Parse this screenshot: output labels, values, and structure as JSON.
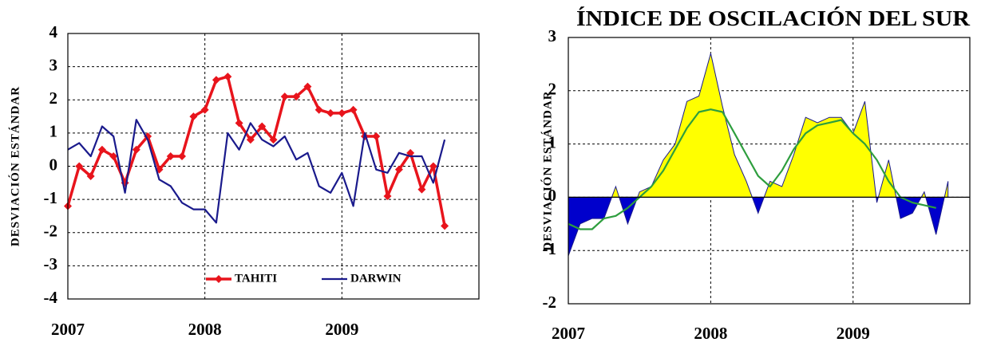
{
  "chart_data": [
    {
      "type": "line",
      "ylabel": "DESVIACIÓN  ESTÁNDAR",
      "x": [
        2007,
        2007.083,
        2007.167,
        2007.25,
        2007.333,
        2007.417,
        2007.5,
        2007.583,
        2007.667,
        2007.75,
        2007.833,
        2007.917,
        2008,
        2008.083,
        2008.167,
        2008.25,
        2008.333,
        2008.417,
        2008.5,
        2008.583,
        2008.667,
        2008.75,
        2008.833,
        2008.917,
        2009,
        2009.083,
        2009.167,
        2009.25,
        2009.333,
        2009.417,
        2009.5,
        2009.583,
        2009.667,
        2009.75
      ],
      "xlim": [
        2007,
        2010
      ],
      "xticks": [
        2007,
        2008,
        2009
      ],
      "ylim": [
        -4,
        4
      ],
      "yticks": [
        -4,
        -3,
        -2,
        -1,
        0,
        1,
        2,
        3,
        4
      ],
      "grid": true,
      "legend": "bottom",
      "series": [
        {
          "name": "TAHITI",
          "color": "#e8141c",
          "marker": "diamond",
          "values": [
            -1.2,
            0,
            -0.3,
            0.5,
            0.3,
            -0.5,
            0.5,
            0.9,
            -0.1,
            0.3,
            0.3,
            1.5,
            1.7,
            2.6,
            2.7,
            1.3,
            0.8,
            1.2,
            0.8,
            2.1,
            2.1,
            2.4,
            1.7,
            1.6,
            1.6,
            1.7,
            0.9,
            0.9,
            -0.9,
            -0.1,
            0.4,
            -0.7,
            0,
            -1.8
          ]
        },
        {
          "name": "DARWIN",
          "color": "#1a1a8c",
          "values": [
            0.5,
            0.7,
            0.3,
            1.2,
            0.9,
            -0.8,
            1.4,
            0.8,
            -0.4,
            -0.6,
            -1.1,
            -1.3,
            -1.3,
            -1.7,
            1.0,
            0.5,
            1.3,
            0.8,
            0.6,
            0.9,
            0.2,
            0.4,
            -0.6,
            -0.8,
            -0.2,
            -1.2,
            1.0,
            -0.1,
            -0.2,
            0.4,
            0.3,
            0.3,
            -0.5,
            0.8
          ]
        }
      ]
    },
    {
      "type": "area",
      "title": "ÍNDICE DE OSCILACIÓN DEL SUR",
      "ylabel": "DESVIACIÓN  ESTÁNDAR",
      "x": [
        2007,
        2007.083,
        2007.167,
        2007.25,
        2007.333,
        2007.417,
        2007.5,
        2007.583,
        2007.667,
        2007.75,
        2007.833,
        2007.917,
        2008,
        2008.083,
        2008.167,
        2008.25,
        2008.333,
        2008.417,
        2008.5,
        2008.583,
        2008.667,
        2008.75,
        2008.833,
        2008.917,
        2009,
        2009.083,
        2009.167,
        2009.25,
        2009.333,
        2009.417,
        2009.5,
        2009.583,
        2009.667
      ],
      "xlim": [
        2007,
        2009.82
      ],
      "xticks": [
        2007,
        2008,
        2009
      ],
      "ylim": [
        -2,
        3
      ],
      "yticks": [
        -2,
        -1,
        0,
        1,
        2,
        3
      ],
      "grid": true,
      "series": [
        {
          "color": "#1a1a8c",
          "fill": true,
          "positive_color": "#ffff00",
          "negative_color": "#0000cc",
          "values": [
            -1.1,
            -0.5,
            -0.4,
            -0.4,
            0.2,
            -0.5,
            0.1,
            0.2,
            0.7,
            1.0,
            1.8,
            1.9,
            2.7,
            1.7,
            0.8,
            0.3,
            -0.3,
            0.3,
            0.2,
            0.8,
            1.5,
            1.4,
            1.5,
            1.5,
            1.2,
            1.8,
            -0.1,
            0.7,
            -0.4,
            -0.3,
            0.1,
            -0.7,
            0.3
          ]
        },
        {
          "color": "#2e9e3e",
          "values": [
            -0.5,
            -0.6,
            -0.6,
            -0.4,
            -0.35,
            -0.2,
            0.0,
            0.2,
            0.5,
            0.9,
            1.3,
            1.6,
            1.65,
            1.6,
            1.2,
            0.8,
            0.4,
            0.2,
            0.5,
            0.9,
            1.2,
            1.35,
            1.4,
            1.45,
            1.2,
            1.0,
            0.7,
            0.3,
            0.0,
            -0.1,
            -0.15,
            -0.2,
            null
          ]
        }
      ]
    }
  ]
}
